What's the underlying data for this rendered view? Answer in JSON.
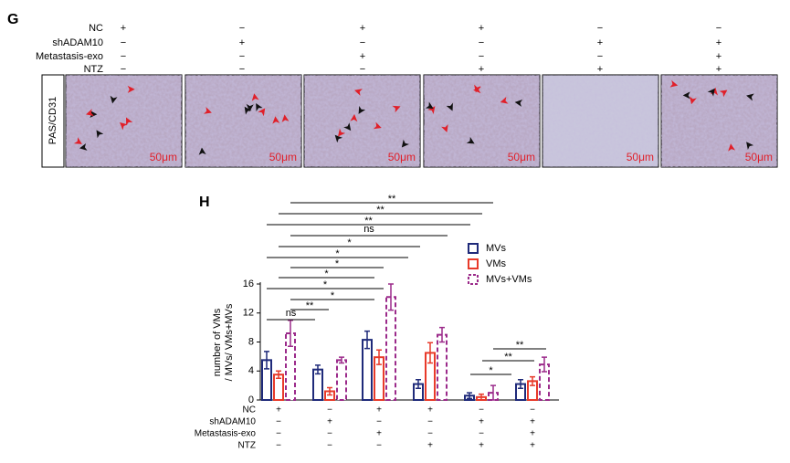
{
  "panel_g": {
    "label": "G",
    "row_labels": [
      "NC",
      "shADAM10",
      "Metastasis-exo",
      "NTZ"
    ],
    "signs": [
      [
        "+",
        "−",
        "+",
        "+",
        "−",
        "−"
      ],
      [
        "−",
        "+",
        "−",
        "−",
        "+",
        "+"
      ],
      [
        "−",
        "−",
        "+",
        "−",
        "−",
        "+"
      ],
      [
        "−",
        "−",
        "−",
        "+",
        "+",
        "+"
      ]
    ],
    "stain_label": "PAS/CD31",
    "scale_bar": "50μm"
  },
  "chart_data": {
    "type": "bar",
    "panel_label": "H",
    "ylabel": [
      "number of VMs",
      "/ MVs/ VMs+MVs"
    ],
    "categories": [
      null,
      null,
      null,
      null,
      null,
      null
    ],
    "series": [
      {
        "name": "MVs",
        "color": "#1f2a7a",
        "dashed": false,
        "values": [
          5.5,
          4.2,
          8.3,
          2.2,
          0.6,
          2.2
        ],
        "errors": [
          1.2,
          0.6,
          1.2,
          0.6,
          0.4,
          0.6
        ]
      },
      {
        "name": "VMs",
        "color": "#e83a2a",
        "dashed": false,
        "values": [
          3.5,
          1.2,
          5.9,
          6.5,
          0.4,
          2.6
        ],
        "errors": [
          0.5,
          0.5,
          1.0,
          1.4,
          0.4,
          0.6
        ]
      },
      {
        "name": "MVs+VMs",
        "color": "#9b2a8a",
        "dashed": true,
        "values": [
          9.2,
          5.5,
          14.2,
          9.0,
          1.0,
          4.9
        ],
        "errors": [
          1.8,
          0.4,
          1.8,
          1.0,
          1.0,
          1.0
        ]
      }
    ],
    "ylim": [
      0,
      16
    ],
    "yticks": [
      0,
      4,
      8,
      12,
      16
    ],
    "legend": "upper-right",
    "significance": [
      "**",
      "**",
      "**",
      "ns",
      "*",
      "*",
      "*",
      "*",
      "*",
      "*",
      "**",
      "ns",
      "*",
      "**",
      "**"
    ]
  }
}
